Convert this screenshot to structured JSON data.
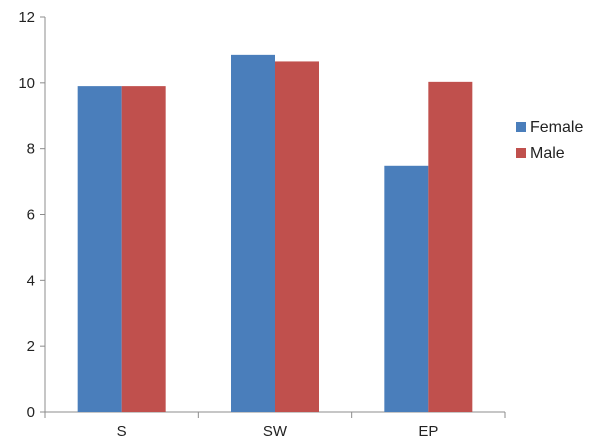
{
  "chart_data": {
    "type": "bar",
    "title": "",
    "xlabel": "",
    "ylabel": "",
    "categories": [
      "S",
      "SW",
      "EP"
    ],
    "series": [
      {
        "name": "Female",
        "color": "#4a7ebb",
        "values": [
          9.9,
          10.85,
          7.48
        ]
      },
      {
        "name": "Male",
        "color": "#c0504d",
        "values": [
          9.9,
          10.65,
          10.03
        ]
      }
    ],
    "ylim": [
      0,
      12
    ],
    "yticks": [
      0,
      2,
      4,
      6,
      8,
      10,
      12
    ],
    "grid": false,
    "legend": "right"
  }
}
